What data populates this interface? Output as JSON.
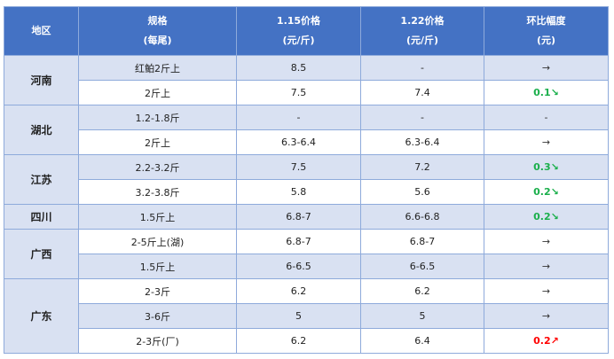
{
  "header": {
    "region": "地区",
    "spec": [
      "规格",
      "(每尾)"
    ],
    "p1": [
      "1.15价格",
      "(元/斤)"
    ],
    "p2": [
      "1.22价格",
      "(元/斤)"
    ],
    "change": [
      "环比幅度",
      "(元)"
    ]
  },
  "colors": {
    "header_bg": "#4472c4",
    "row_alt": "#d9e1f2",
    "down": "#1aaf4b",
    "up": "#ff0000"
  },
  "groups": [
    {
      "region": "河南",
      "rows": [
        {
          "spec": "红鲌2斤上",
          "p1": "8.5",
          "p2": "-",
          "change": "→",
          "trend": "flat"
        },
        {
          "spec": "2斤上",
          "p1": "7.5",
          "p2": "7.4",
          "change": "0.1↘",
          "trend": "down"
        }
      ]
    },
    {
      "region": "湖北",
      "rows": [
        {
          "spec": "1.2-1.8斤",
          "p1": "-",
          "p2": "-",
          "change": "-",
          "trend": "flat"
        },
        {
          "spec": "2斤上",
          "p1": "6.3-6.4",
          "p2": "6.3-6.4",
          "change": "→",
          "trend": "flat"
        }
      ]
    },
    {
      "region": "江苏",
      "rows": [
        {
          "spec": "2.2-3.2斤",
          "p1": "7.5",
          "p2": "7.2",
          "change": "0.3↘",
          "trend": "down"
        },
        {
          "spec": "3.2-3.8斤",
          "p1": "5.8",
          "p2": "5.6",
          "change": "0.2↘",
          "trend": "down"
        }
      ]
    },
    {
      "region": "四川",
      "rows": [
        {
          "spec": "1.5斤上",
          "p1": "6.8-7",
          "p2": "6.6-6.8",
          "change": "0.2↘",
          "trend": "down"
        }
      ]
    },
    {
      "region": "广西",
      "rows": [
        {
          "spec": "2-5斤上(湖)",
          "p1": "6.8-7",
          "p2": "6.8-7",
          "change": "→",
          "trend": "flat"
        },
        {
          "spec": "1.5斤上",
          "p1": "6-6.5",
          "p2": "6-6.5",
          "change": "→",
          "trend": "flat"
        }
      ]
    },
    {
      "region": "广东",
      "rows": [
        {
          "spec": "2-3斤",
          "p1": "6.2",
          "p2": "6.2",
          "change": "→",
          "trend": "flat"
        },
        {
          "spec": "3-6斤",
          "p1": "5",
          "p2": "5",
          "change": "→",
          "trend": "flat"
        },
        {
          "spec": "2-3斤(厂)",
          "p1": "6.2",
          "p2": "6.4",
          "change": "0.2↗",
          "trend": "up"
        }
      ]
    }
  ]
}
